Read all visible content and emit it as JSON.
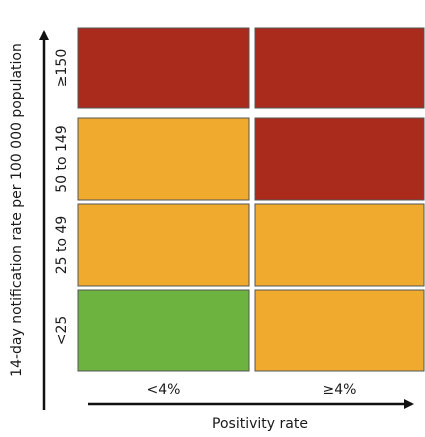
{
  "chart_data": {
    "type": "heatmap",
    "title": "",
    "xlabel": "Positivity rate",
    "ylabel": "14-day notification rate per 100 000 population",
    "x_categories": [
      "<4%",
      "≥4%"
    ],
    "y_categories": [
      "<25",
      "25 to 49",
      "50 to 149",
      "≥150"
    ],
    "cells": [
      [
        "green",
        "orange"
      ],
      [
        "orange",
        "orange"
      ],
      [
        "orange",
        "red"
      ],
      [
        "red",
        "red"
      ]
    ],
    "colors": {
      "green": "#6db33f",
      "orange": "#f0ab2f",
      "red": "#aa2a1c"
    },
    "grid": false
  }
}
